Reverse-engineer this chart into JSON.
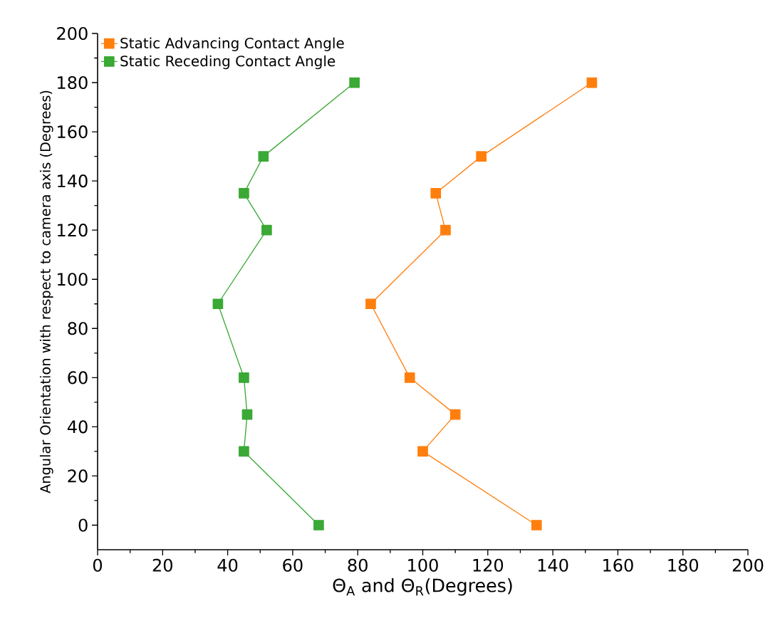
{
  "chart_data": {
    "type": "line",
    "xlabel": "Θ$_{A}$ and Θ$_{R}$(Degrees)",
    "ylabel": "Angular Orientation with respect to camera axis (Degrees)",
    "series": [
      {
        "name": "Static Advancing Contact Angle",
        "color": "#ff7f0e",
        "x": [
          135,
          100,
          110,
          96,
          84,
          107,
          104,
          118,
          152
        ],
        "values": [
          0,
          30,
          45,
          60,
          90,
          120,
          135,
          150,
          180
        ]
      },
      {
        "name": "Static Receding Contact Angle",
        "color": "#3aa935",
        "x": [
          68,
          45,
          46,
          45,
          37,
          52,
          45,
          51,
          79
        ],
        "values": [
          0,
          30,
          45,
          60,
          90,
          120,
          135,
          150,
          180
        ]
      }
    ],
    "xlim": [
      0,
      200
    ],
    "ylim": [
      -10,
      200
    ],
    "xticks": [
      0,
      20,
      40,
      60,
      80,
      100,
      120,
      140,
      160,
      180,
      200
    ],
    "yticks": [
      0,
      20,
      40,
      60,
      80,
      100,
      120,
      140,
      160,
      180,
      200
    ],
    "legend": "top left",
    "marker": "square",
    "line_style": "solid",
    "grid": false
  }
}
